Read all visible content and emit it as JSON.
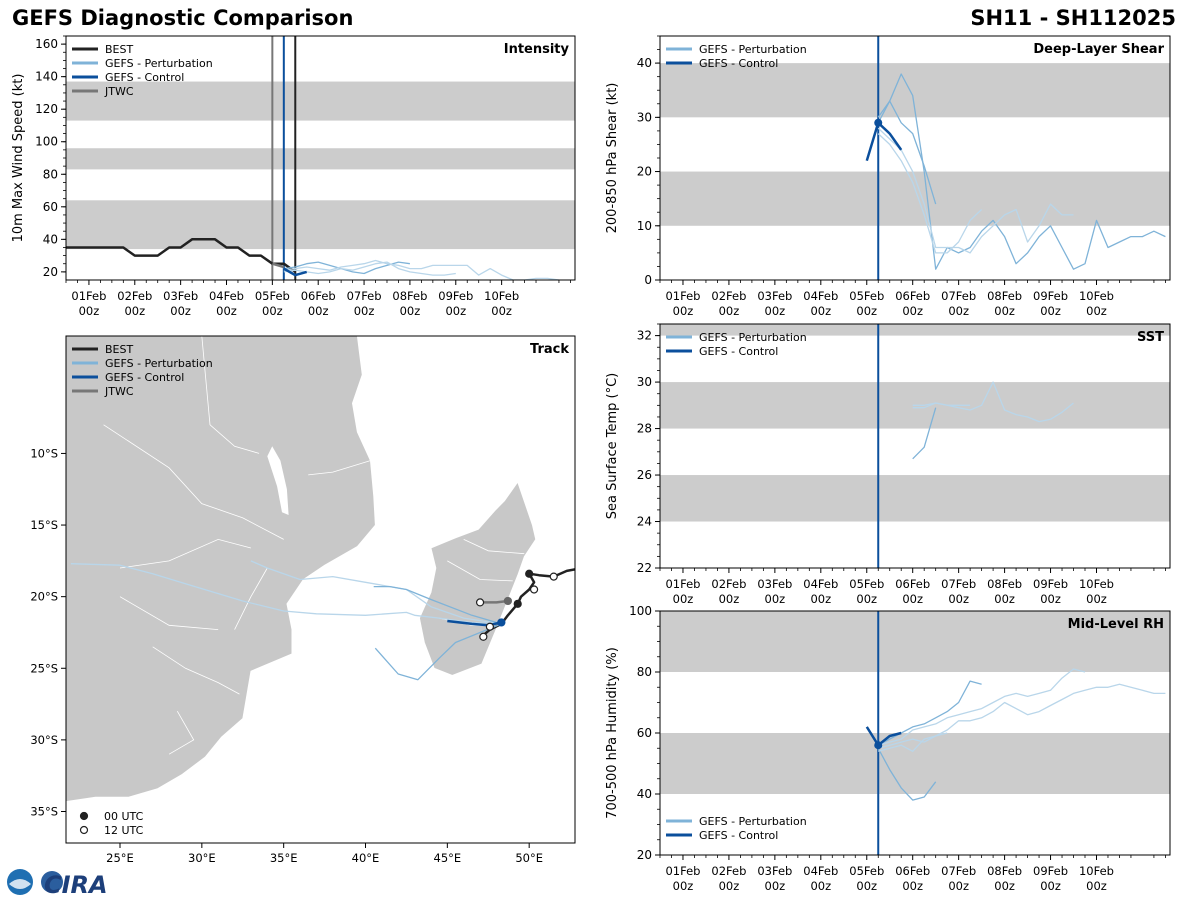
{
  "header": {
    "title": "GEFS Diagnostic Comparison",
    "storm_id": "SH11 - SH112025"
  },
  "logo": {
    "text": "CIRA"
  },
  "colors": {
    "best": "#222222",
    "perturbation": "#7fb3d8",
    "perturbation_light": "#b9d6ea",
    "control": "#0b4f9c",
    "jtwc": "#777777",
    "band": "#cccccc",
    "land": "#c8c8c8"
  },
  "time_axis": {
    "labels": [
      "01Feb\n00z",
      "02Feb\n00z",
      "03Feb\n00z",
      "04Feb\n00z",
      "05Feb\n00z",
      "06Feb\n00z",
      "07Feb\n00z",
      "08Feb\n00z",
      "09Feb\n00z",
      "10Feb\n00z"
    ]
  },
  "chart_data": [
    {
      "id": "intensity",
      "type": "line",
      "title": "Intensity",
      "ylabel": "10m Max Wind Speed (kt)",
      "xlim": [
        -0.5,
        10.6
      ],
      "ylim": [
        15,
        165
      ],
      "yticks": [
        20,
        40,
        60,
        80,
        100,
        120,
        140,
        160
      ],
      "bands": [
        [
          34,
          64
        ],
        [
          83,
          96
        ],
        [
          113,
          137
        ]
      ],
      "vlines": [
        {
          "x": 4.0,
          "color": "#777777"
        },
        {
          "x": 4.25,
          "color": "#0b4f9c"
        },
        {
          "x": 4.5,
          "color": "#222222"
        }
      ],
      "legend": [
        "BEST",
        "GEFS - Perturbation",
        "GEFS - Control",
        "JTWC"
      ],
      "series": [
        {
          "name": "BEST",
          "role": "best",
          "x": [
            -0.5,
            -0.25,
            0,
            0.25,
            0.5,
            0.75,
            1,
            1.25,
            1.5,
            1.75,
            2,
            2.25,
            2.5,
            2.75,
            3,
            3.25,
            3.5,
            3.75,
            4,
            4.25,
            4.5
          ],
          "y": [
            35,
            35,
            35,
            35,
            35,
            35,
            30,
            30,
            30,
            35,
            35,
            40,
            40,
            40,
            35,
            35,
            30,
            30,
            25,
            25,
            20
          ]
        },
        {
          "name": "GEFS - Perturbation",
          "role": "pert",
          "x": [
            4.25,
            4.5,
            4.75,
            5,
            5.25,
            5.5,
            5.75,
            6,
            6.25,
            6.5,
            6.75,
            7
          ],
          "y": [
            22,
            23,
            25,
            26,
            24,
            22,
            20,
            19,
            22,
            24,
            26,
            25
          ]
        },
        {
          "name": "GEFS - Perturbation",
          "role": "pert_light",
          "x": [
            4.25,
            4.5,
            4.75,
            5,
            5.25,
            5.5,
            5.75,
            6,
            6.25,
            6.5,
            6.75,
            7,
            7.25,
            7.5,
            7.75,
            8,
            8.25,
            8.5,
            8.75,
            9,
            9.25,
            9.5,
            9.75,
            10,
            10.25
          ],
          "y": [
            21,
            22,
            23,
            22,
            21,
            23,
            24,
            25,
            27,
            25,
            24,
            22,
            22,
            24,
            24,
            24,
            24,
            18,
            22,
            18,
            15,
            15,
            16,
            16,
            15
          ]
        },
        {
          "name": "GEFS - Perturbation",
          "role": "pert_light",
          "x": [
            4.25,
            4.5,
            4.75,
            5,
            5.25,
            5.5,
            5.75,
            6,
            6.25,
            6.5,
            6.75,
            7,
            7.25,
            7.5,
            7.75,
            8
          ],
          "y": [
            20,
            21,
            20,
            19,
            20,
            22,
            21,
            23,
            25,
            26,
            22,
            20,
            19,
            18,
            18,
            19
          ]
        },
        {
          "name": "GEFS - Control",
          "role": "control",
          "x": [
            4.25,
            4.5,
            4.75
          ],
          "y": [
            22,
            18,
            20
          ]
        },
        {
          "name": "JTWC",
          "role": "jtwc",
          "x": [
            4.0,
            4.25
          ],
          "y": [
            25,
            23
          ]
        }
      ]
    },
    {
      "id": "shear",
      "type": "line",
      "title": "Deep-Layer Shear",
      "ylabel": "200-850 hPa Shear (kt)",
      "xlim": [
        -0.5,
        10.6
      ],
      "ylim": [
        0,
        45
      ],
      "yticks": [
        0,
        10,
        20,
        30,
        40
      ],
      "bands": [
        [
          10,
          20
        ],
        [
          30,
          40
        ]
      ],
      "vlines": [
        {
          "x": 4.25,
          "color": "#0b4f9c"
        }
      ],
      "legend": [
        "GEFS - Perturbation",
        "GEFS - Control"
      ],
      "series": [
        {
          "name": "GEFS - Perturbation",
          "role": "pert",
          "x": [
            4.25,
            4.5,
            4.75,
            5,
            5.25,
            5.5,
            5.75,
            6,
            6.25,
            6.5,
            6.75,
            7,
            7.25,
            7.5,
            7.75,
            8,
            8.25,
            8.5,
            8.75,
            9,
            9.25,
            9.5,
            9.75,
            10,
            10.25,
            10.5
          ],
          "y": [
            29,
            33,
            38,
            34,
            20,
            2,
            6,
            5,
            6,
            9,
            11,
            8,
            3,
            5,
            8,
            10,
            6,
            2,
            3,
            11,
            6,
            7,
            8,
            8,
            9,
            8
          ]
        },
        {
          "name": "GEFS - Perturbation",
          "role": "pert_light",
          "x": [
            4.25,
            4.5,
            4.75,
            5,
            5.25,
            5.5,
            5.75,
            6,
            6.25,
            6.5,
            6.75,
            7,
            7.25,
            7.5,
            7.75,
            8,
            8.25,
            8.5
          ],
          "y": [
            28,
            26,
            24,
            20,
            14,
            6,
            6,
            6,
            5,
            8,
            10,
            12,
            13,
            7,
            10,
            14,
            12,
            12
          ]
        },
        {
          "name": "GEFS - Perturbation",
          "role": "pert_light",
          "x": [
            4.25,
            4.5,
            4.75,
            5,
            5.25,
            5.5,
            5.75,
            6,
            6.25,
            6.5
          ],
          "y": [
            27,
            25,
            22,
            18,
            12,
            5,
            5,
            7,
            11,
            13
          ]
        },
        {
          "name": "GEFS - Perturbation",
          "role": "pert",
          "x": [
            4.25,
            4.5,
            4.75,
            5,
            5.25,
            5.5
          ],
          "y": [
            30,
            33,
            29,
            27,
            21,
            14
          ]
        },
        {
          "name": "GEFS - Control",
          "role": "control",
          "x": [
            4.0,
            4.25,
            4.5,
            4.75
          ],
          "y": [
            22,
            29,
            27,
            24
          ]
        }
      ],
      "markers": [
        {
          "x": 4.25,
          "y": 29,
          "role": "control"
        }
      ]
    },
    {
      "id": "sst",
      "type": "line",
      "title": "SST",
      "ylabel": "Sea Surface Temp (°C)",
      "xlim": [
        -0.5,
        10.6
      ],
      "ylim": [
        22,
        32.5
      ],
      "yticks": [
        22,
        24,
        26,
        28,
        30,
        32
      ],
      "bands": [
        [
          24,
          26
        ],
        [
          28,
          30
        ],
        [
          32,
          32.5
        ]
      ],
      "vlines": [
        {
          "x": 4.25,
          "color": "#0b4f9c"
        }
      ],
      "legend": [
        "GEFS - Perturbation",
        "GEFS - Control"
      ],
      "series": [
        {
          "name": "GEFS - Perturbation",
          "role": "pert",
          "x": [
            5.0,
            5.25,
            5.5
          ],
          "y": [
            26.7,
            27.2,
            28.9
          ]
        },
        {
          "name": "GEFS - Perturbation",
          "role": "pert_light",
          "x": [
            5.0,
            5.25,
            5.5,
            5.75,
            6.0,
            6.25,
            6.5,
            6.75,
            7.0,
            7.25,
            7.5,
            7.75,
            8.0,
            8.25,
            8.5
          ],
          "y": [
            28.9,
            28.9,
            29.1,
            29.0,
            28.9,
            28.8,
            29.0,
            30.0,
            28.8,
            28.6,
            28.5,
            28.3,
            28.4,
            28.7,
            29.1
          ]
        },
        {
          "name": "GEFS - Perturbation",
          "role": "pert_light",
          "x": [
            5.0,
            5.25,
            5.5,
            5.75,
            6.0,
            6.25
          ],
          "y": [
            29.0,
            29.0,
            29.1,
            29.0,
            29.0,
            29.0
          ]
        }
      ]
    },
    {
      "id": "rh",
      "type": "line",
      "title": "Mid-Level RH",
      "ylabel": "700-500 hPa Humidity (%)",
      "xlim": [
        -0.5,
        10.6
      ],
      "ylim": [
        20,
        100
      ],
      "yticks": [
        20,
        40,
        60,
        80,
        100
      ],
      "bands": [
        [
          40,
          60
        ],
        [
          80,
          100
        ]
      ],
      "vlines": [
        {
          "x": 4.25,
          "color": "#0b4f9c"
        }
      ],
      "legend": [
        "GEFS - Perturbation",
        "GEFS - Control"
      ],
      "series": [
        {
          "name": "GEFS - Perturbation",
          "role": "pert",
          "x": [
            4.25,
            4.5,
            4.75,
            5,
            5.25,
            5.5
          ],
          "y": [
            55,
            48,
            42,
            38,
            39,
            44
          ]
        },
        {
          "name": "GEFS - Perturbation",
          "role": "pert_light",
          "x": [
            4.25,
            4.5,
            4.75,
            5,
            5.25,
            5.5,
            5.75,
            6,
            6.25,
            6.5,
            6.75,
            7,
            7.25,
            7.5,
            7.75,
            8,
            8.25,
            8.5,
            8.75,
            9,
            9.25,
            9.5,
            9.75,
            10,
            10.25,
            10.5
          ],
          "y": [
            55,
            56,
            57,
            58,
            57,
            59,
            61,
            64,
            64,
            65,
            67,
            70,
            68,
            66,
            67,
            69,
            71,
            73,
            74,
            75,
            75,
            76,
            75,
            74,
            73,
            73
          ]
        },
        {
          "name": "GEFS - Perturbation",
          "role": "pert_light",
          "x": [
            4.25,
            4.5,
            4.75,
            5,
            5.25,
            5.5,
            5.75,
            6,
            6.25,
            6.5,
            6.75,
            7,
            7.25,
            7.5,
            7.75,
            8,
            8.25,
            8.5,
            8.75
          ],
          "y": [
            56,
            57,
            58,
            61,
            62,
            63,
            65,
            66,
            67,
            68,
            70,
            72,
            73,
            72,
            73,
            74,
            78,
            81,
            80
          ]
        },
        {
          "name": "GEFS - Perturbation",
          "role": "pert",
          "x": [
            4.25,
            4.5,
            4.75,
            5,
            5.25,
            5.5,
            5.75,
            6,
            6.25,
            6.5
          ],
          "y": [
            56,
            58,
            60,
            62,
            63,
            65,
            67,
            70,
            77,
            76
          ]
        },
        {
          "name": "GEFS - Perturbation",
          "role": "pert_light",
          "x": [
            4.25,
            4.5,
            4.75,
            5,
            5.25,
            5.5,
            5.75
          ],
          "y": [
            54,
            55,
            56,
            54,
            58,
            59,
            60
          ]
        },
        {
          "name": "GEFS - Control",
          "role": "control",
          "x": [
            4.0,
            4.25,
            4.5,
            4.75
          ],
          "y": [
            62,
            56,
            59,
            60
          ]
        }
      ],
      "markers": [
        {
          "x": 4.25,
          "y": 56,
          "role": "control"
        }
      ]
    },
    {
      "id": "track",
      "type": "scatter",
      "title": "Track",
      "xlim": [
        21.7,
        52.8
      ],
      "ylim": [
        -37.2,
        -1.8
      ],
      "xticks": [
        25,
        30,
        35,
        40,
        45,
        50
      ],
      "xticklabels": [
        "25°E",
        "30°E",
        "35°E",
        "40°E",
        "45°E",
        "50°E"
      ],
      "yticks": [
        -10,
        -15,
        -20,
        -25,
        -30,
        -35
      ],
      "yticklabels": [
        "10°S",
        "15°S",
        "20°S",
        "25°S",
        "30°S",
        "35°S"
      ],
      "legend": [
        "BEST",
        "GEFS - Perturbation",
        "GEFS - Control",
        "JTWC"
      ],
      "marker_legend": [
        "00 UTC",
        "12 UTC"
      ],
      "series": [
        {
          "name": "BEST",
          "role": "best",
          "lon": [
            52.8,
            52.3,
            51.5,
            50.6,
            50.0,
            50.3,
            50.0,
            49.5,
            49.3,
            48.7,
            48.3,
            47.6,
            47.2
          ],
          "lat": [
            -18.1,
            -18.2,
            -18.6,
            -18.5,
            -18.4,
            -19.0,
            -19.5,
            -20.0,
            -20.5,
            -21.3,
            -21.9,
            -22.3,
            -22.7
          ]
        },
        {
          "name": "GEFS - Perturbation",
          "role": "pert",
          "lon": [
            48.3,
            47.0,
            45.5,
            44.5,
            43.2,
            42.0,
            40.6
          ],
          "lat": [
            -21.9,
            -22.5,
            -23.2,
            -24.3,
            -25.8,
            -25.4,
            -23.6
          ]
        },
        {
          "name": "GEFS - Perturbation",
          "role": "pert_light",
          "lon": [
            48.3,
            46.5,
            44.5,
            43.0,
            42.5,
            40.0,
            37.0,
            35.0,
            32.5,
            29.0,
            27.0,
            25.0,
            22.0
          ],
          "lat": [
            -21.9,
            -21.8,
            -21.5,
            -21.3,
            -21.1,
            -21.3,
            -21.2,
            -21.0,
            -20.3,
            -19.1,
            -18.4,
            -17.8,
            -17.7
          ]
        },
        {
          "name": "GEFS - Perturbation",
          "role": "pert_light",
          "lon": [
            48.3,
            46.0,
            44.0,
            42.5,
            40.0,
            38.0,
            36.0,
            34.0,
            33.0
          ],
          "lat": [
            -21.9,
            -21.5,
            -20.7,
            -19.5,
            -19.0,
            -18.6,
            -18.8,
            -18.0,
            -17.5
          ]
        },
        {
          "name": "GEFS - Perturbation",
          "role": "pert",
          "lon": [
            48.3,
            46.5,
            44.0,
            42.5,
            41.5,
            40.5
          ],
          "lat": [
            -21.9,
            -21.3,
            -20.2,
            -19.5,
            -19.3,
            -19.3
          ]
        },
        {
          "name": "GEFS - Control",
          "role": "control",
          "lon": [
            48.3,
            47.5,
            46.5,
            45.0
          ],
          "lat": [
            -21.8,
            -22.0,
            -21.9,
            -21.7
          ]
        },
        {
          "name": "JTWC",
          "role": "jtwc",
          "lon": [
            48.7,
            48.0,
            47.0
          ],
          "lat": [
            -20.3,
            -20.4,
            -20.4
          ]
        }
      ],
      "markers": [
        {
          "lon": 50.0,
          "lat": -18.4,
          "kind": "00"
        },
        {
          "lon": 51.5,
          "lat": -18.6,
          "kind": "12"
        },
        {
          "lon": 50.3,
          "lat": -19.5,
          "kind": "12"
        },
        {
          "lon": 49.3,
          "lat": -20.5,
          "kind": "00"
        },
        {
          "lon": 48.7,
          "lat": -20.3,
          "kind": "00jtwc"
        },
        {
          "lon": 47.0,
          "lat": -20.4,
          "kind": "12"
        },
        {
          "lon": 47.6,
          "lat": -22.1,
          "kind": "12"
        },
        {
          "lon": 47.2,
          "lat": -22.8,
          "kind": "12"
        },
        {
          "lon": 48.3,
          "lat": -21.8,
          "kind": "00ctrl"
        }
      ]
    }
  ]
}
